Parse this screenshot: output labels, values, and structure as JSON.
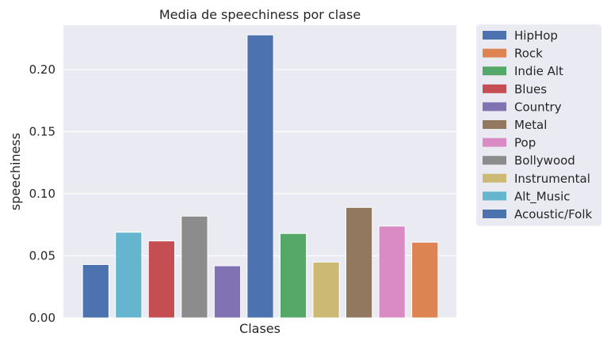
{
  "chart_data": {
    "type": "bar",
    "title": "Media de speechiness por clase",
    "xlabel": "Clases",
    "ylabel": "speechiness",
    "ylim": [
      0,
      0.2357
    ],
    "yticks": [
      0.0,
      0.05,
      0.1,
      0.15,
      0.2
    ],
    "ytick_labels": [
      "0.00",
      "0.05",
      "0.10",
      "0.15",
      "0.20"
    ],
    "grid": true,
    "legend_position": "outside-right",
    "bars": [
      {
        "color": "#4c72b0",
        "value": 0.043
      },
      {
        "color": "#64b5cd",
        "value": 0.069
      },
      {
        "color": "#c44e52",
        "value": 0.062
      },
      {
        "color": "#8c8c8c",
        "value": 0.082
      },
      {
        "color": "#8172b3",
        "value": 0.042
      },
      {
        "color": "#4c72b0",
        "value": 0.228
      },
      {
        "color": "#55a868",
        "value": 0.068
      },
      {
        "color": "#ccb974",
        "value": 0.045
      },
      {
        "color": "#937860",
        "value": 0.089
      },
      {
        "color": "#da8bc3",
        "value": 0.074
      },
      {
        "color": "#dd8452",
        "value": 0.061
      }
    ],
    "legend": [
      {
        "label": "HipHop",
        "color": "#4c72b0"
      },
      {
        "label": "Rock",
        "color": "#dd8452"
      },
      {
        "label": "Indie Alt",
        "color": "#55a868"
      },
      {
        "label": "Blues",
        "color": "#c44e52"
      },
      {
        "label": "Country",
        "color": "#8172b3"
      },
      {
        "label": "Metal",
        "color": "#937860"
      },
      {
        "label": "Pop",
        "color": "#da8bc3"
      },
      {
        "label": "Bollywood",
        "color": "#8c8c8c"
      },
      {
        "label": "Instrumental",
        "color": "#ccb974"
      },
      {
        "label": "Alt_Music",
        "color": "#64b5cd"
      },
      {
        "label": "Acoustic/Folk",
        "color": "#4c72b0"
      }
    ],
    "colors": {
      "plot_background": "#eaeaf2",
      "grid": "#ffffff",
      "text": "#262626"
    }
  }
}
